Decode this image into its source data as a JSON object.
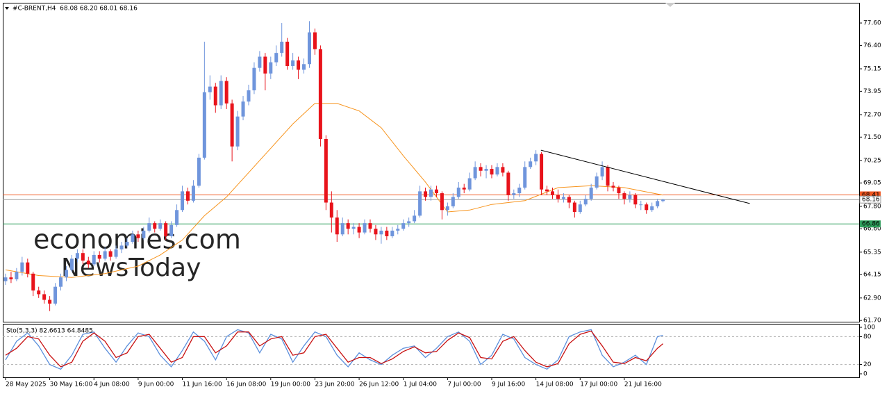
{
  "chart_data": [
    {
      "type": "candlestick",
      "title": "#C-BRENT,H4  68.08 68.20 68.01 68.16",
      "open": [
        63.8,
        64.0,
        63.9,
        64.3,
        64.8,
        64.2,
        63.3,
        63.1,
        62.8,
        62.6,
        63.5,
        64.0,
        64.4,
        65.0,
        65.3,
        64.9,
        64.7,
        65.2,
        65.0,
        65.4,
        65.1,
        65.5,
        65.7,
        65.9,
        66.3,
        66.1,
        66.5,
        66.9,
        66.6,
        66.9,
        66.2,
        66.8,
        67.6,
        68.6,
        68.1,
        68.9,
        70.4,
        73.9,
        74.2,
        73.2,
        74.5,
        73.3,
        71.0,
        72.6,
        73.4,
        74.0,
        75.2,
        75.8,
        74.9,
        75.5,
        76.0,
        76.6,
        75.3,
        75.6,
        75.1,
        75.4,
        77.1,
        76.2,
        71.4,
        68.0,
        67.2,
        66.3,
        66.9,
        66.6,
        66.7,
        66.4,
        66.9,
        66.6,
        66.3,
        66.5,
        66.2,
        66.5,
        66.6,
        66.9,
        67.0,
        67.3,
        68.6,
        68.3,
        68.7,
        68.5,
        67.6,
        67.8,
        68.3,
        68.8,
        68.7,
        69.3,
        69.9,
        69.7,
        69.8,
        69.5,
        69.9,
        69.6,
        68.4,
        68.5,
        68.8,
        69.9,
        70.2,
        70.6,
        68.7,
        68.6,
        68.4,
        68.2,
        68.3,
        68.0,
        67.5,
        67.9,
        68.2,
        68.8,
        69.4,
        69.9,
        68.9,
        68.8,
        68.5,
        68.2,
        68.4,
        67.9,
        67.9,
        67.6,
        67.8,
        68.08
      ],
      "high": [
        64.2,
        64.3,
        64.5,
        65.1,
        65.0,
        64.3,
        63.5,
        63.3,
        63.0,
        63.7,
        64.2,
        64.6,
        65.2,
        65.5,
        65.5,
        65.1,
        65.4,
        65.4,
        65.6,
        65.5,
        65.7,
        65.9,
        66.1,
        66.5,
        66.5,
        66.7,
        67.2,
        67.0,
        67.1,
        67.0,
        67.0,
        67.9,
        68.9,
        68.8,
        69.2,
        70.6,
        76.6,
        74.8,
        74.4,
        74.8,
        74.7,
        73.5,
        72.9,
        73.7,
        74.3,
        75.5,
        76.1,
        76.0,
        75.8,
        76.4,
        77.6,
        76.8,
        76.0,
        75.8,
        75.7,
        77.7,
        77.3,
        76.4,
        71.6,
        68.6,
        67.6,
        67.2,
        67.1,
        66.9,
        66.9,
        67.1,
        67.1,
        66.8,
        66.7,
        66.7,
        66.7,
        66.8,
        67.1,
        67.2,
        67.6,
        68.9,
        68.8,
        68.9,
        68.9,
        68.6,
        68.0,
        68.5,
        69.1,
        69.0,
        69.6,
        70.2,
        70.1,
        70.0,
        70.0,
        70.1,
        70.1,
        69.7,
        68.7,
        69.0,
        70.2,
        70.4,
        70.8,
        70.7,
        68.9,
        68.8,
        68.7,
        68.5,
        68.4,
        68.1,
        68.1,
        68.4,
        69.0,
        69.6,
        70.2,
        70.0,
        69.1,
        68.9,
        68.6,
        68.6,
        68.5,
        68.1,
        68.0,
        68.0,
        68.2,
        68.2
      ],
      "low": [
        63.6,
        63.7,
        63.8,
        64.1,
        64.0,
        63.0,
        62.9,
        62.6,
        62.2,
        62.5,
        63.3,
        63.8,
        64.3,
        64.8,
        64.7,
        64.5,
        64.6,
        64.8,
        64.9,
        64.9,
        65.0,
        65.3,
        65.6,
        65.8,
        65.9,
        66.0,
        66.4,
        66.4,
        66.5,
        66.0,
        66.1,
        66.7,
        67.5,
        67.9,
        68.0,
        68.8,
        70.3,
        73.5,
        72.8,
        73.0,
        73.0,
        70.2,
        70.8,
        72.4,
        73.2,
        73.8,
        75.0,
        74.0,
        74.6,
        75.3,
        75.8,
        75.1,
        75.1,
        74.6,
        74.9,
        75.2,
        75.9,
        71.0,
        67.6,
        66.4,
        65.9,
        66.2,
        66.3,
        66.3,
        66.1,
        66.3,
        66.4,
        66.0,
        65.8,
        66.0,
        66.1,
        66.3,
        66.5,
        66.7,
        66.9,
        67.2,
        68.1,
        68.1,
        68.3,
        67.1,
        67.3,
        67.7,
        68.2,
        68.5,
        68.6,
        69.2,
        69.4,
        69.3,
        69.3,
        69.4,
        69.4,
        68.1,
        68.2,
        68.3,
        68.7,
        69.8,
        70.0,
        68.4,
        68.4,
        68.2,
        68.0,
        68.0,
        67.7,
        67.2,
        67.4,
        67.8,
        68.1,
        68.7,
        69.2,
        68.6,
        68.6,
        68.2,
        67.9,
        68.0,
        67.7,
        67.6,
        67.4,
        67.5,
        67.7,
        68.01
      ],
      "close": [
        64.0,
        63.9,
        64.3,
        64.8,
        64.2,
        63.3,
        63.1,
        62.8,
        62.6,
        63.5,
        64.0,
        64.4,
        65.0,
        65.3,
        64.9,
        64.7,
        65.2,
        65.0,
        65.4,
        65.1,
        65.5,
        65.7,
        65.9,
        66.3,
        66.1,
        66.5,
        66.9,
        66.6,
        66.9,
        66.2,
        66.8,
        67.6,
        68.6,
        68.1,
        68.9,
        70.4,
        73.9,
        74.2,
        73.2,
        74.5,
        73.3,
        71.0,
        72.6,
        73.4,
        74.0,
        75.2,
        75.8,
        74.9,
        75.5,
        76.0,
        76.6,
        75.3,
        75.6,
        75.1,
        75.4,
        77.1,
        76.2,
        71.4,
        68.0,
        67.2,
        66.3,
        66.9,
        66.6,
        66.7,
        66.4,
        66.9,
        66.6,
        66.3,
        66.5,
        66.2,
        66.5,
        66.6,
        66.9,
        67.0,
        67.3,
        68.6,
        68.3,
        68.7,
        68.5,
        67.6,
        67.8,
        68.3,
        68.8,
        68.7,
        69.3,
        69.9,
        69.7,
        69.8,
        69.5,
        69.9,
        69.6,
        68.4,
        68.5,
        68.8,
        69.9,
        70.2,
        70.6,
        68.7,
        68.6,
        68.4,
        68.2,
        68.3,
        68.0,
        67.5,
        67.9,
        68.2,
        68.8,
        69.4,
        69.9,
        68.9,
        68.8,
        68.5,
        68.2,
        68.4,
        67.9,
        67.9,
        67.6,
        67.8,
        68.08,
        68.16
      ],
      "up_color": "#6f95dc",
      "down_color": "#e8131b",
      "xlim": [
        -0.5,
        154.5
      ],
      "ylim": [
        61.63,
        78.68
      ],
      "yticks": [
        {
          "value": 77.6,
          "label": "77.60"
        },
        {
          "value": 76.4,
          "label": "76.40"
        },
        {
          "value": 75.15,
          "label": "75.15"
        },
        {
          "value": 73.95,
          "label": "73.95"
        },
        {
          "value": 72.7,
          "label": "72.70"
        },
        {
          "value": 71.5,
          "label": "71.50"
        },
        {
          "value": 70.25,
          "label": "70.25"
        },
        {
          "value": 69.05,
          "label": "69.05"
        },
        {
          "value": 67.8,
          "label": "67.80"
        },
        {
          "value": 66.6,
          "label": "66.60"
        },
        {
          "value": 65.35,
          "label": "65.35"
        },
        {
          "value": 64.15,
          "label": "64.15"
        },
        {
          "value": 62.9,
          "label": "62.90"
        },
        {
          "value": 61.7,
          "label": "61.70"
        }
      ],
      "xticks": [
        {
          "value": 0,
          "label": "28 May 2025"
        },
        {
          "value": 8,
          "label": "30 May 16:00"
        },
        {
          "value": 16,
          "label": "4 Jun 08:00"
        },
        {
          "value": 24,
          "label": "9 Jun 00:00"
        },
        {
          "value": 32,
          "label": "11 Jun 16:00"
        },
        {
          "value": 40,
          "label": "16 Jun 08:00"
        },
        {
          "value": 48,
          "label": "19 Jun 00:00"
        },
        {
          "value": 56,
          "label": "23 Jun 20:00"
        },
        {
          "value": 64,
          "label": "26 Jun 12:00"
        },
        {
          "value": 72,
          "label": "1 Jul 04:00"
        },
        {
          "value": 80,
          "label": "7 Jul 00:00"
        },
        {
          "value": 88,
          "label": "9 Jul 16:00"
        },
        {
          "value": 96,
          "label": "14 Jul 08:00"
        },
        {
          "value": 104,
          "label": "17 Jul 00:00"
        },
        {
          "value": 112,
          "label": "21 Jul 16:00"
        }
      ],
      "levels": [
        {
          "value": 68.41,
          "color": "#f0561f"
        },
        {
          "value": 66.86,
          "color": "#2e9e5b"
        },
        {
          "value": 68.16,
          "color": "#9e9e9e"
        }
      ],
      "moving_average": {
        "x": [
          0,
          6,
          12,
          18,
          24,
          28,
          32,
          36,
          40,
          44,
          48,
          52,
          56,
          60,
          64,
          68,
          72,
          76,
          80,
          84,
          88,
          94,
          100,
          106,
          112,
          119
        ],
        "values": [
          64.4,
          64.1,
          64.0,
          64.2,
          64.6,
          65.2,
          66.0,
          67.3,
          68.3,
          69.6,
          70.9,
          72.2,
          73.3,
          73.3,
          72.9,
          72.0,
          70.5,
          69.1,
          67.5,
          67.6,
          67.9,
          68.1,
          68.8,
          68.9,
          68.8,
          68.4
        ],
        "color": "#f7941d"
      },
      "trendline": {
        "x": [
          96.9,
          134.7
        ],
        "values": [
          70.8,
          67.95
        ],
        "color": "#000000"
      },
      "watermark": [
        "economies.com",
        "NewsToday"
      ]
    },
    {
      "type": "line",
      "title": "Sto(5,3,3) 82.6613 64.8485",
      "x": [
        0,
        2,
        4,
        6,
        8,
        10,
        12,
        14,
        16,
        18,
        20,
        22,
        24,
        26,
        28,
        30,
        32,
        34,
        36,
        38,
        40,
        42,
        44,
        46,
        48,
        50,
        52,
        54,
        56,
        58,
        60,
        62,
        64,
        66,
        68,
        70,
        72,
        74,
        76,
        78,
        80,
        82,
        84,
        86,
        88,
        90,
        92,
        94,
        96,
        98,
        100,
        102,
        104,
        106,
        108,
        110,
        112,
        114,
        116,
        118,
        119
      ],
      "series": [
        {
          "color": "#5b8fdc",
          "values": [
            30,
            70,
            88,
            60,
            20,
            10,
            40,
            85,
            90,
            55,
            25,
            60,
            88,
            80,
            40,
            15,
            50,
            90,
            70,
            30,
            80,
            95,
            88,
            45,
            85,
            75,
            25,
            60,
            90,
            80,
            40,
            15,
            45,
            30,
            20,
            40,
            55,
            60,
            35,
            55,
            80,
            90,
            70,
            20,
            40,
            85,
            75,
            35,
            20,
            10,
            30,
            80,
            90,
            95,
            40,
            15,
            25,
            40,
            20,
            80,
            82.6613
          ]
        },
        {
          "color": "#c81010",
          "values": [
            40,
            55,
            80,
            75,
            40,
            15,
            25,
            70,
            88,
            70,
            35,
            45,
            80,
            85,
            55,
            25,
            35,
            80,
            80,
            45,
            60,
            90,
            90,
            60,
            75,
            80,
            40,
            45,
            80,
            85,
            55,
            25,
            35,
            35,
            22,
            32,
            48,
            58,
            45,
            48,
            72,
            88,
            78,
            35,
            32,
            70,
            80,
            50,
            25,
            15,
            22,
            65,
            85,
            92,
            60,
            25,
            22,
            35,
            28,
            55,
            64.8485
          ]
        }
      ],
      "xlim": [
        -0.5,
        154.5
      ],
      "ylim": [
        -7.5,
        107.5
      ],
      "yticks": [
        100,
        80,
        20,
        0
      ],
      "levels": [
        80,
        20
      ]
    }
  ]
}
